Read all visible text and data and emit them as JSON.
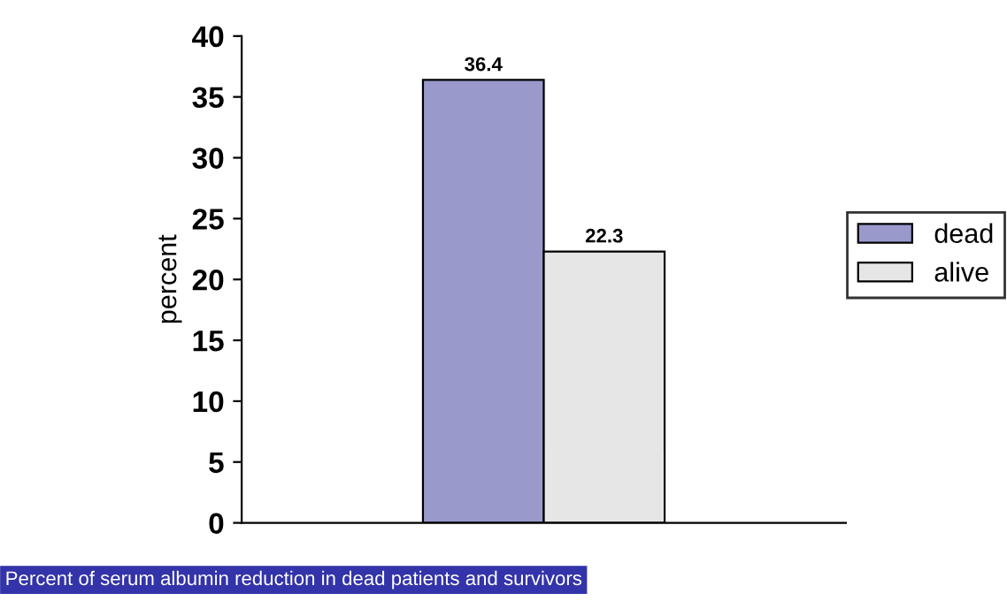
{
  "chart_data": {
    "type": "bar",
    "ylabel": "percent",
    "categories": [
      null
    ],
    "series": [
      {
        "name": "dead",
        "color": "#9999cc",
        "values": [
          36.4
        ]
      },
      {
        "name": "alive",
        "color": "#e6e6e6",
        "values": [
          22.3
        ]
      }
    ],
    "ylim": [
      0,
      40
    ],
    "yticks": [
      0,
      5,
      10,
      15,
      20,
      25,
      30,
      35,
      40
    ],
    "data_labels": true,
    "legend": "right",
    "grid": false,
    "annotations": [
      "Percent of serum albumin reduction in dead patients and survivors"
    ]
  }
}
